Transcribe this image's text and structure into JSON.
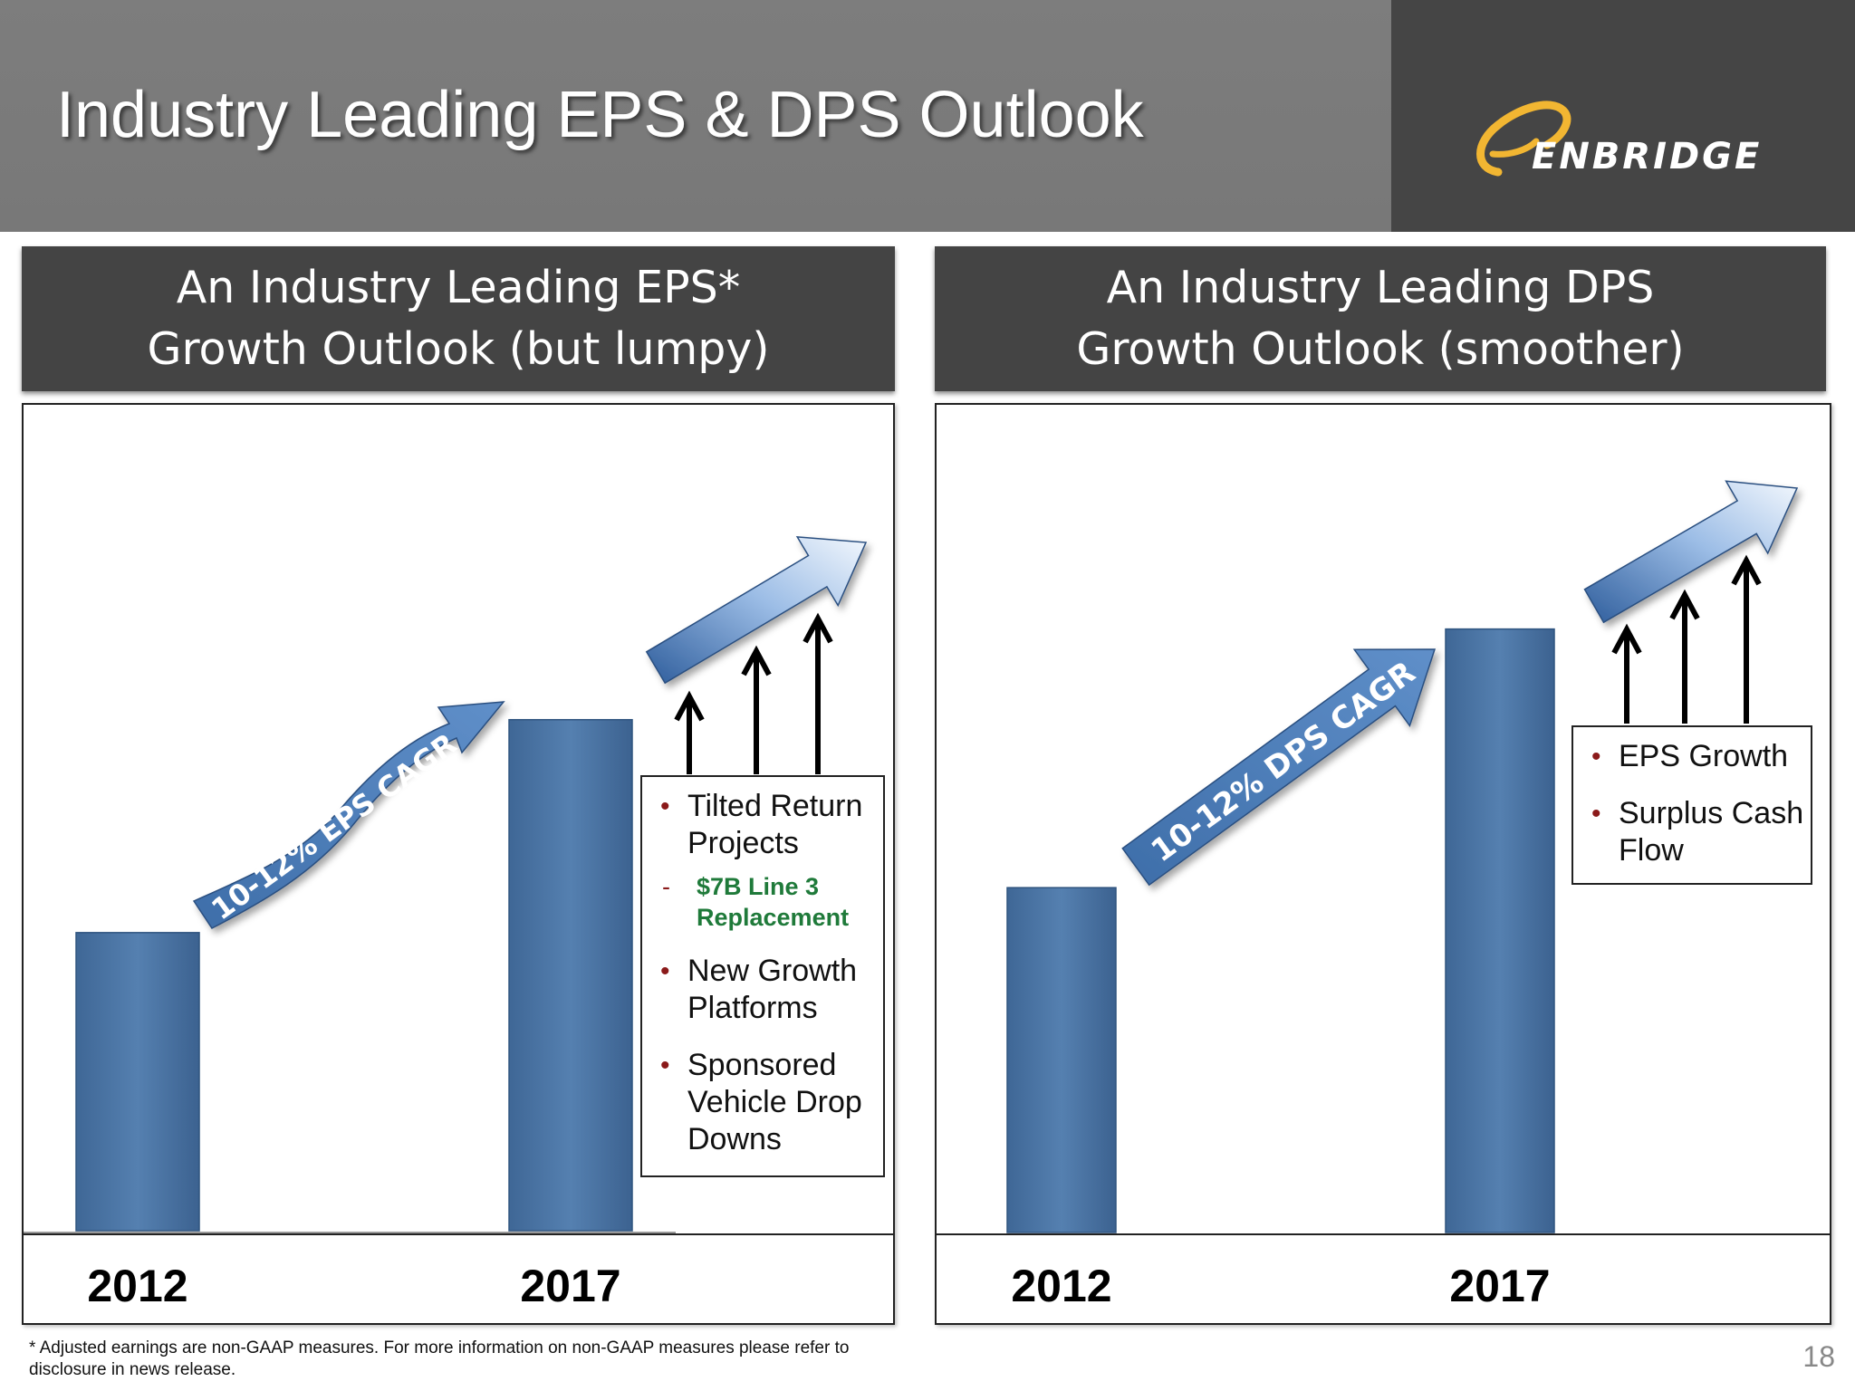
{
  "header": {
    "title": "Industry Leading EPS & DPS Outlook",
    "logo_text": "ENBRIDGE",
    "logo_color": "#f2b632"
  },
  "left_panel": {
    "title_line1": "An Industry Leading EPS*",
    "title_line2": "Growth Outlook (but lumpy)",
    "cagr_label": "10-12%  EPS CAGR",
    "drivers": [
      {
        "label": "Tilted Return Projects"
      },
      {
        "label": "$7B Line 3 Replacement",
        "sub": true
      },
      {
        "label": "New Growth Platforms"
      },
      {
        "label": "Sponsored Vehicle Drop Downs"
      }
    ]
  },
  "right_panel": {
    "title_line1": "An Industry Leading DPS",
    "title_line2": "Growth Outlook (smoother)",
    "cagr_label": "10-12% DPS CAGR",
    "drivers": [
      {
        "label": "EPS Growth"
      },
      {
        "label": "Surplus Cash Flow"
      }
    ]
  },
  "chart_data": [
    {
      "type": "bar",
      "categories": [
        "2012",
        "2017"
      ],
      "values": [
        0.385,
        0.66
      ],
      "bar_color": "#4f79a8",
      "annotation": "10-12%  EPS CAGR"
    },
    {
      "type": "bar",
      "categories": [
        "2012",
        "2017"
      ],
      "values": [
        0.4,
        0.7
      ],
      "bar_color": "#4f79a8",
      "annotation": "10-12% DPS CAGR"
    }
  ],
  "footnote": "* Adjusted earnings are non-GAAP measures. For more information on non-GAAP measures please refer to disclosure in news release.",
  "page_number": "18"
}
